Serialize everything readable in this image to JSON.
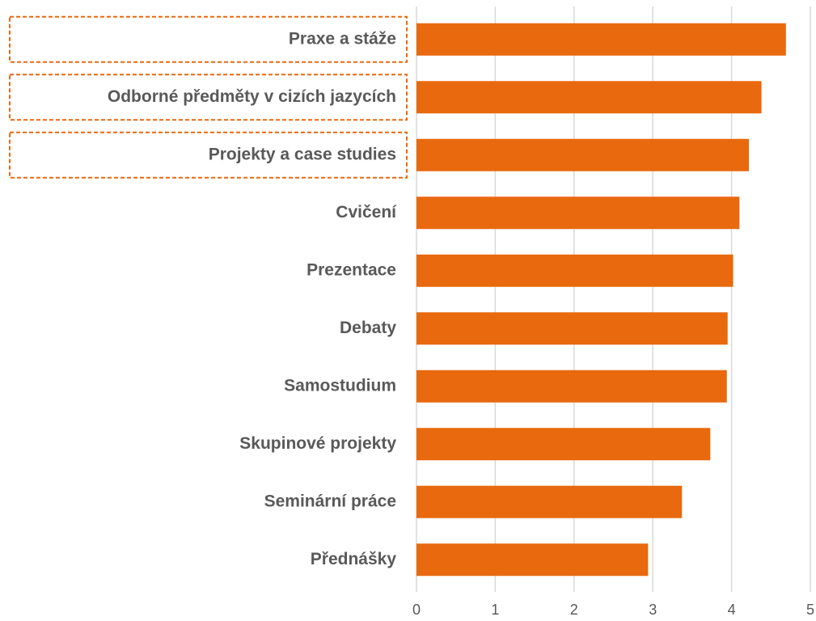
{
  "chart_data": {
    "type": "barh",
    "categories": [
      "Praxe a stáže",
      "Odborné předměty v cizích jazycích",
      "Projekty a case studies",
      "Cvičení",
      "Prezentace",
      "Debaty",
      "Samostudium",
      "Skupinové projekty",
      "Seminární práce",
      "Přednášky"
    ],
    "values": [
      4.69,
      4.38,
      4.22,
      4.1,
      4.02,
      3.95,
      3.94,
      3.73,
      3.37,
      2.94
    ],
    "color": "#e8690e",
    "xlim": [
      0,
      5
    ],
    "xticks": [
      0,
      1,
      2,
      3,
      4,
      5
    ],
    "grid": true,
    "highlighted": [
      0,
      1,
      2
    ]
  }
}
